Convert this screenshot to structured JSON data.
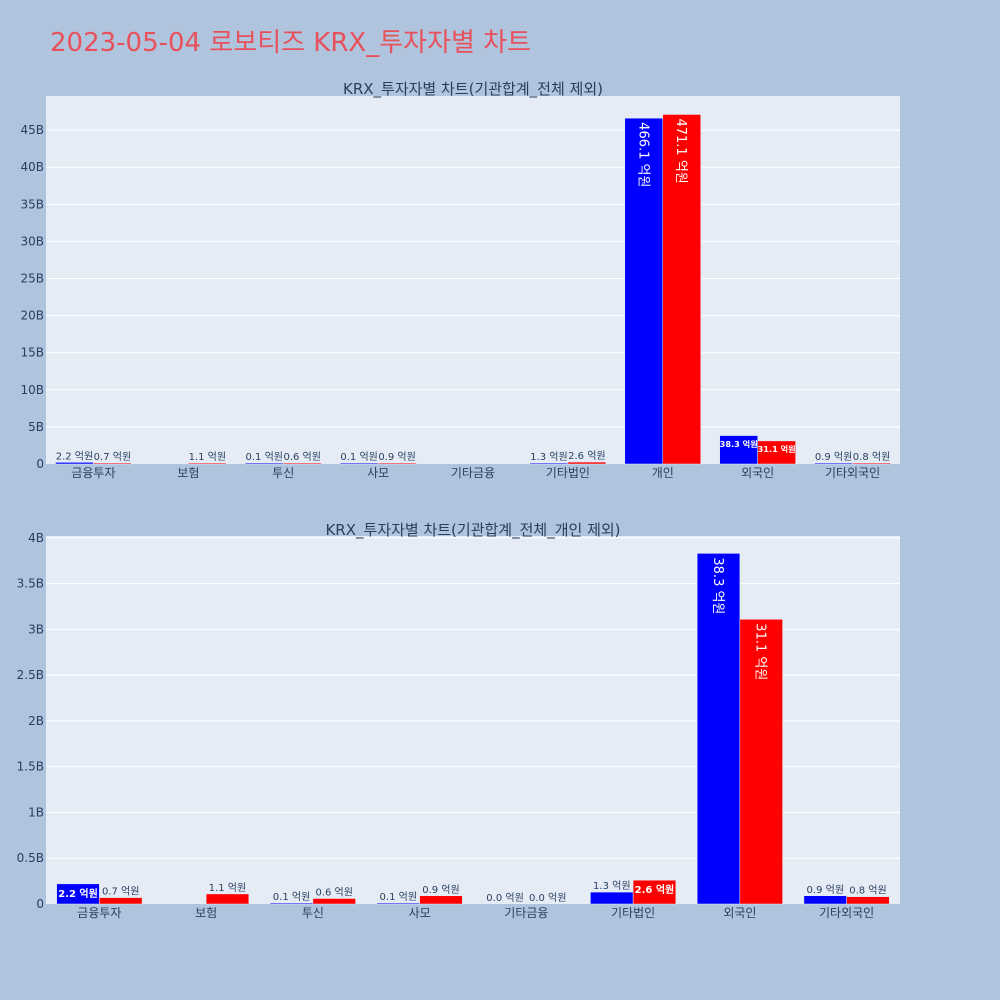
{
  "page": {
    "title": "2023-05-04 로보티즈 KRX_투자자별 차트"
  },
  "colors": {
    "background": "#b0c4de",
    "plot_bg": "#e5ecf6",
    "buy": "#0000ff",
    "sell": "#ff0000",
    "title": "#e8505b",
    "text": "#2a3f5f"
  },
  "chart_data": [
    {
      "type": "bar",
      "title": "KRX_투자자별 차트(기관합계_전체 제외)",
      "categories": [
        "금융투자",
        "보험",
        "투신",
        "사모",
        "기타금융",
        "기타법인",
        "개인",
        "외국인",
        "기타외국인"
      ],
      "series": [
        {
          "color": "#0000ff",
          "values": [
            220000000,
            0,
            10000000,
            10000000,
            0,
            130000000,
            46610000000,
            3830000000,
            90000000
          ],
          "labels": [
            "2.2 억원",
            "",
            "0.1 억원",
            "0.1 억원",
            "",
            "1.3 억원",
            "466.1 억원",
            "38.3 억원",
            "0.9 억원"
          ]
        },
        {
          "color": "#ff0000",
          "values": [
            70000000,
            110000000,
            60000000,
            90000000,
            0,
            260000000,
            47110000000,
            3110000000,
            80000000
          ],
          "labels": [
            "0.7 억원",
            "1.1 억원",
            "0.6 억원",
            "0.9 억원",
            "",
            "2.6 억원",
            "471.1 억원",
            "31.1 억원",
            "0.8 억원"
          ]
        }
      ],
      "yticks": [
        0,
        5000000000,
        10000000000,
        15000000000,
        20000000000,
        25000000000,
        30000000000,
        35000000000,
        40000000000,
        45000000000
      ],
      "ytick_labels": [
        "0",
        "5B",
        "10B",
        "15B",
        "20B",
        "25B",
        "30B",
        "35B",
        "40B",
        "45B"
      ],
      "ylim": [
        0,
        49600000000
      ],
      "grid": true,
      "legend": "none"
    },
    {
      "type": "bar",
      "title": "KRX_투자자별 차트(기관합계_전체_개인 제외)",
      "categories": [
        "금융투자",
        "보험",
        "투신",
        "사모",
        "기타금융",
        "기타법인",
        "외국인",
        "기타외국인"
      ],
      "series": [
        {
          "color": "#0000ff",
          "values": [
            220000000,
            0,
            10000000,
            10000000,
            0,
            130000000,
            3830000000,
            90000000
          ],
          "labels": [
            "2.2 억원",
            "",
            "0.1 억원",
            "0.1 억원",
            "0.0 억원",
            "1.3 억원",
            "38.3 억원",
            "0.9 억원"
          ]
        },
        {
          "color": "#ff0000",
          "values": [
            70000000,
            110000000,
            60000000,
            90000000,
            0,
            260000000,
            3110000000,
            80000000
          ],
          "labels": [
            "0.7 억원",
            "1.1 억원",
            "0.6 억원",
            "0.9 억원",
            "0.0 억원",
            "2.6 억원",
            "31.1 억원",
            "0.8 억원"
          ]
        }
      ],
      "yticks": [
        0,
        500000000,
        1000000000,
        1500000000,
        2000000000,
        2500000000,
        3000000000,
        3500000000,
        4000000000
      ],
      "ytick_labels": [
        "0",
        "0.5B",
        "1B",
        "1.5B",
        "2B",
        "2.5B",
        "3B",
        "3.5B",
        "4B"
      ],
      "ylim": [
        0,
        4020000000
      ],
      "grid": true,
      "legend": "none"
    }
  ]
}
